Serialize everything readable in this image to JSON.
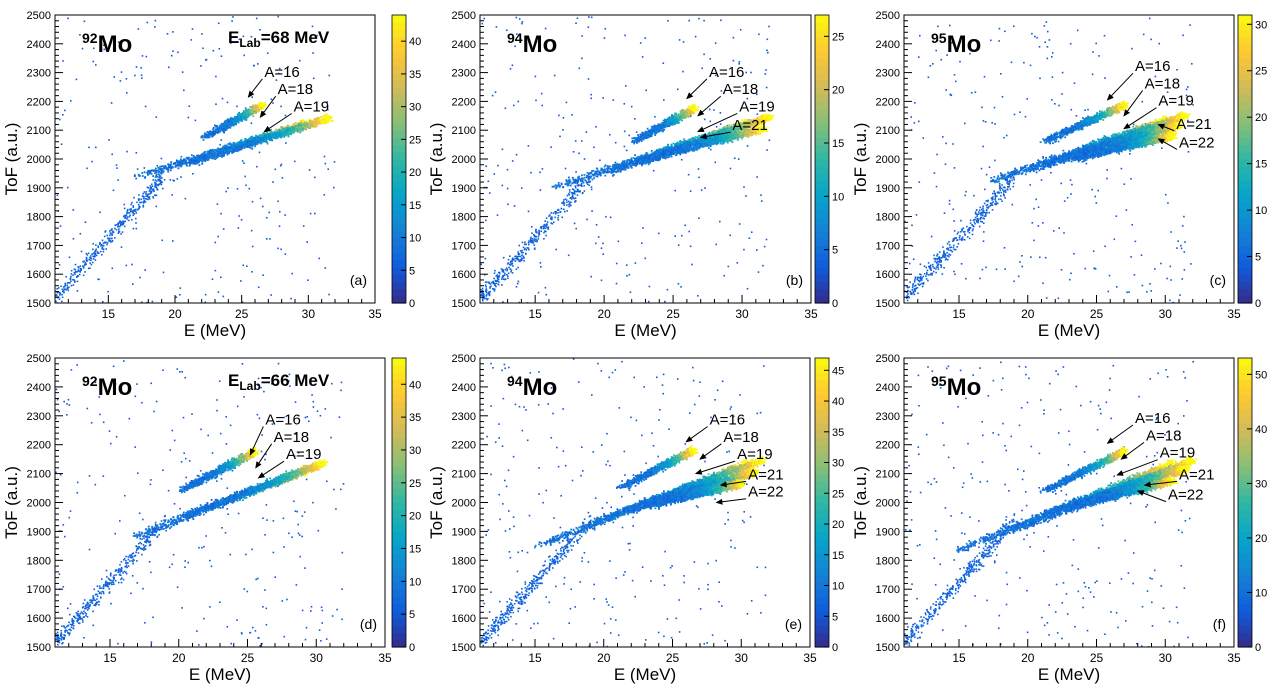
{
  "chart_data": [
    {
      "type": "heatmap",
      "panel_label": "(a)",
      "target": "92Mo",
      "target_mass": "92",
      "target_symbol": "Mo",
      "energy_label": {
        "prefix": "E",
        "sub": "Lab",
        "suffix": "=68 MeV"
      },
      "xlabel": "E (MeV)",
      "ylabel": "ToF (a.u.)",
      "xlim": [
        11,
        35
      ],
      "ylim": [
        1500,
        2500
      ],
      "xticks": [
        15,
        20,
        25,
        30,
        35
      ],
      "yticks": [
        1500,
        1600,
        1700,
        1800,
        1900,
        2000,
        2100,
        2200,
        2300,
        2400,
        2500
      ],
      "zlim": [
        0,
        44
      ],
      "zticks": [
        0,
        5,
        10,
        15,
        20,
        25,
        30,
        35,
        40
      ],
      "bands": [
        {
          "name": "A=16",
          "e_start": 22.0,
          "e_end": 26.5,
          "tof_start": 2075,
          "tof_end": 2190
        },
        {
          "name": "A=18",
          "e_start": 17.0,
          "e_end": 30.0,
          "tof_start": 1940,
          "tof_end": 2130
        },
        {
          "name": "A=19",
          "e_start": 20.5,
          "e_end": 31.5,
          "tof_start": 1980,
          "tof_end": 2145
        }
      ],
      "annotations": [
        {
          "label": "A=16",
          "text_e": 26.7,
          "text_tof": 2285,
          "arrow_e": 25.5,
          "arrow_tof": 2215
        },
        {
          "label": "A=18",
          "text_e": 27.7,
          "text_tof": 2225,
          "arrow_e": 26.4,
          "arrow_tof": 2145
        },
        {
          "label": "A=19",
          "text_e": 28.9,
          "text_tof": 2165,
          "arrow_e": 26.7,
          "arrow_tof": 2095
        }
      ]
    },
    {
      "type": "heatmap",
      "panel_label": "(b)",
      "target": "94Mo",
      "target_mass": "94",
      "target_symbol": "Mo",
      "xlabel": "E (MeV)",
      "ylabel": "ToF (a.u.)",
      "xlim": [
        11,
        35
      ],
      "ylim": [
        1500,
        2500
      ],
      "xticks": [
        15,
        20,
        25,
        30,
        35
      ],
      "yticks": [
        1500,
        1600,
        1700,
        1800,
        1900,
        2000,
        2100,
        2200,
        2300,
        2400,
        2500
      ],
      "zlim": [
        0,
        27
      ],
      "zticks": [
        0,
        5,
        10,
        15,
        20,
        25
      ],
      "bands": [
        {
          "name": "A=16",
          "e_start": 22.0,
          "e_end": 26.5,
          "tof_start": 2060,
          "tof_end": 2180
        },
        {
          "name": "A=18",
          "e_start": 16.0,
          "e_end": 30.5,
          "tof_start": 1900,
          "tof_end": 2130
        },
        {
          "name": "A=19",
          "e_start": 20.0,
          "e_end": 32.0,
          "tof_start": 1950,
          "tof_end": 2150
        },
        {
          "name": "A=21",
          "e_start": 22.0,
          "e_end": 31.5,
          "tof_start": 1990,
          "tof_end": 2110
        }
      ],
      "annotations": [
        {
          "label": "A=16",
          "text_e": 27.6,
          "text_tof": 2285,
          "arrow_e": 26.0,
          "arrow_tof": 2210
        },
        {
          "label": "A=18",
          "text_e": 28.6,
          "text_tof": 2225,
          "arrow_e": 26.8,
          "arrow_tof": 2150
        },
        {
          "label": "A=19",
          "text_e": 29.8,
          "text_tof": 2165,
          "arrow_e": 26.8,
          "arrow_tof": 2095
        },
        {
          "label": "A=21",
          "text_e": 29.3,
          "text_tof": 2100,
          "arrow_e": 27.0,
          "arrow_tof": 2075
        }
      ]
    },
    {
      "type": "heatmap",
      "panel_label": "(c)",
      "target": "95Mo",
      "target_mass": "95",
      "target_symbol": "Mo",
      "xlabel": "E (MeV)",
      "ylabel": "ToF (a.u.)",
      "xlim": [
        11,
        35
      ],
      "ylim": [
        1500,
        2500
      ],
      "xticks": [
        15,
        20,
        25,
        30,
        35
      ],
      "yticks": [
        1500,
        1600,
        1700,
        1800,
        1900,
        2000,
        2100,
        2200,
        2300,
        2400,
        2500
      ],
      "zlim": [
        0,
        31
      ],
      "zticks": [
        0,
        5,
        10,
        15,
        20,
        25,
        30
      ],
      "bands": [
        {
          "name": "A=16",
          "e_start": 21.0,
          "e_end": 27.0,
          "tof_start": 2060,
          "tof_end": 2190
        },
        {
          "name": "A=18",
          "e_start": 17.0,
          "e_end": 30.0,
          "tof_start": 1920,
          "tof_end": 2140
        },
        {
          "name": "A=19",
          "e_start": 20.0,
          "e_end": 31.5,
          "tof_start": 1960,
          "tof_end": 2155
        },
        {
          "name": "A=21",
          "e_start": 22.0,
          "e_end": 31.0,
          "tof_start": 2000,
          "tof_end": 2120
        },
        {
          "name": "A=22",
          "e_start": 23.0,
          "e_end": 30.5,
          "tof_start": 2000,
          "tof_end": 2085
        }
      ],
      "annotations": [
        {
          "label": "A=16",
          "text_e": 27.8,
          "text_tof": 2305,
          "arrow_e": 25.8,
          "arrow_tof": 2205
        },
        {
          "label": "A=18",
          "text_e": 28.5,
          "text_tof": 2245,
          "arrow_e": 27.0,
          "arrow_tof": 2150
        },
        {
          "label": "A=19",
          "text_e": 29.5,
          "text_tof": 2185,
          "arrow_e": 27.0,
          "arrow_tof": 2105
        },
        {
          "label": "A=21",
          "text_e": 30.8,
          "text_tof": 2105,
          "arrow_e": 29.5,
          "arrow_tof": 2120
        },
        {
          "label": "A=22",
          "text_e": 31.0,
          "text_tof": 2040,
          "arrow_e": 29.5,
          "arrow_tof": 2070
        }
      ]
    },
    {
      "type": "heatmap",
      "panel_label": "(d)",
      "target": "92Mo",
      "target_mass": "92",
      "target_symbol": "Mo",
      "energy_label": {
        "prefix": "E",
        "sub": "Lab",
        "suffix": "=66 MeV"
      },
      "xlabel": "E (MeV)",
      "ylabel": "ToF (a.u.)",
      "xlim": [
        11,
        35
      ],
      "ylim": [
        1500,
        2500
      ],
      "xticks": [
        15,
        20,
        25,
        30,
        35
      ],
      "yticks": [
        1500,
        1600,
        1700,
        1800,
        1900,
        2000,
        2100,
        2200,
        2300,
        2400,
        2500
      ],
      "zlim": [
        0,
        44
      ],
      "zticks": [
        0,
        5,
        10,
        15,
        20,
        25,
        30,
        35,
        40
      ],
      "bands": [
        {
          "name": "A=16",
          "e_start": 20.0,
          "e_end": 25.5,
          "tof_start": 2040,
          "tof_end": 2180
        },
        {
          "name": "A=18",
          "e_start": 16.5,
          "e_end": 29.5,
          "tof_start": 1880,
          "tof_end": 2120
        },
        {
          "name": "A=19",
          "e_start": 20.0,
          "e_end": 30.5,
          "tof_start": 1950,
          "tof_end": 2140
        }
      ],
      "annotations": [
        {
          "label": "A=16",
          "text_e": 26.3,
          "text_tof": 2270,
          "arrow_e": 25.2,
          "arrow_tof": 2165
        },
        {
          "label": "A=18",
          "text_e": 26.9,
          "text_tof": 2210,
          "arrow_e": 25.6,
          "arrow_tof": 2120
        },
        {
          "label": "A=19",
          "text_e": 27.8,
          "text_tof": 2150,
          "arrow_e": 25.8,
          "arrow_tof": 2085
        }
      ]
    },
    {
      "type": "heatmap",
      "panel_label": "(e)",
      "target": "94Mo",
      "target_mass": "94",
      "target_symbol": "Mo",
      "xlabel": "E (MeV)",
      "ylabel": "ToF (a.u.)",
      "xlim": [
        11,
        35
      ],
      "ylim": [
        1500,
        2500
      ],
      "xticks": [
        15,
        20,
        25,
        30,
        35
      ],
      "yticks": [
        1500,
        1600,
        1700,
        1800,
        1900,
        2000,
        2100,
        2200,
        2300,
        2400,
        2500
      ],
      "zlim": [
        0,
        47
      ],
      "zticks": [
        0,
        5,
        10,
        15,
        20,
        25,
        30,
        35,
        40,
        45
      ],
      "bands": [
        {
          "name": "A=16",
          "e_start": 21.0,
          "e_end": 26.5,
          "tof_start": 2050,
          "tof_end": 2185
        },
        {
          "name": "A=18",
          "e_start": 15.0,
          "e_end": 30.5,
          "tof_start": 1850,
          "tof_end": 2140
        },
        {
          "name": "A=19",
          "e_start": 19.0,
          "e_end": 31.5,
          "tof_start": 1930,
          "tof_end": 2150
        },
        {
          "name": "A=21",
          "e_start": 22.0,
          "e_end": 31.0,
          "tof_start": 1980,
          "tof_end": 2110
        },
        {
          "name": "A=22",
          "e_start": 23.0,
          "e_end": 30.0,
          "tof_start": 1990,
          "tof_end": 2070
        }
      ],
      "annotations": [
        {
          "label": "A=16",
          "text_e": 27.7,
          "text_tof": 2270,
          "arrow_e": 26.0,
          "arrow_tof": 2210
        },
        {
          "label": "A=18",
          "text_e": 28.7,
          "text_tof": 2210,
          "arrow_e": 27.0,
          "arrow_tof": 2150
        },
        {
          "label": "A=19",
          "text_e": 29.7,
          "text_tof": 2150,
          "arrow_e": 26.7,
          "arrow_tof": 2100
        },
        {
          "label": "A=21",
          "text_e": 30.5,
          "text_tof": 2080,
          "arrow_e": 28.5,
          "arrow_tof": 2060
        },
        {
          "label": "A=22",
          "text_e": 30.5,
          "text_tof": 2020,
          "arrow_e": 28.2,
          "arrow_tof": 2000
        }
      ]
    },
    {
      "type": "heatmap",
      "panel_label": "(f)",
      "target": "95Mo",
      "target_mass": "95",
      "target_symbol": "Mo",
      "xlabel": "E (MeV)",
      "ylabel": "ToF (a.u.)",
      "xlim": [
        11,
        35
      ],
      "ylim": [
        1500,
        2500
      ],
      "xticks": [
        15,
        20,
        25,
        30,
        35
      ],
      "yticks": [
        1500,
        1600,
        1700,
        1800,
        1900,
        2000,
        2100,
        2200,
        2300,
        2400,
        2500
      ],
      "zlim": [
        0,
        53
      ],
      "zticks": [
        0,
        10,
        20,
        30,
        40,
        50
      ],
      "bands": [
        {
          "name": "A=16",
          "e_start": 21.0,
          "e_end": 27.0,
          "tof_start": 2040,
          "tof_end": 2180
        },
        {
          "name": "A=18",
          "e_start": 14.5,
          "e_end": 30.5,
          "tof_start": 1830,
          "tof_end": 2140
        },
        {
          "name": "A=19",
          "e_start": 18.5,
          "e_end": 32.0,
          "tof_start": 1900,
          "tof_end": 2150
        },
        {
          "name": "A=21",
          "e_start": 21.0,
          "e_end": 31.5,
          "tof_start": 1960,
          "tof_end": 2120
        },
        {
          "name": "A=22",
          "e_start": 22.5,
          "e_end": 30.5,
          "tof_start": 1980,
          "tof_end": 2080
        }
      ],
      "annotations": [
        {
          "label": "A=16",
          "text_e": 27.8,
          "text_tof": 2275,
          "arrow_e": 25.8,
          "arrow_tof": 2205
        },
        {
          "label": "A=18",
          "text_e": 28.6,
          "text_tof": 2215,
          "arrow_e": 26.8,
          "arrow_tof": 2150
        },
        {
          "label": "A=19",
          "text_e": 29.6,
          "text_tof": 2155,
          "arrow_e": 26.5,
          "arrow_tof": 2095
        },
        {
          "label": "A=21",
          "text_e": 31.0,
          "text_tof": 2080,
          "arrow_e": 28.5,
          "arrow_tof": 2060
        },
        {
          "label": "A=22",
          "text_e": 30.2,
          "text_tof": 2010,
          "arrow_e": 28.0,
          "arrow_tof": 2040
        }
      ]
    }
  ],
  "colors": {
    "palette": [
      "#352a87",
      "#0f5cdd",
      "#1481d6",
      "#06a4ca",
      "#2eb7a4",
      "#87bf77",
      "#d1bb59",
      "#fec832",
      "#f9fb0e"
    ],
    "axis": "#000000",
    "background": "#ffffff"
  }
}
